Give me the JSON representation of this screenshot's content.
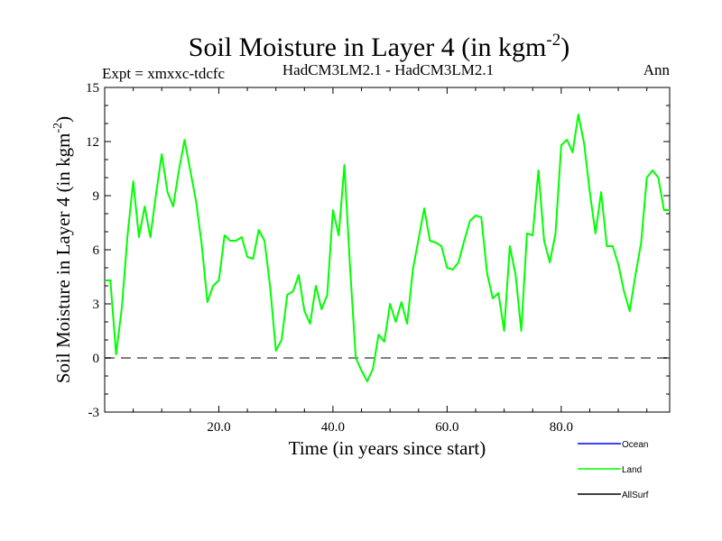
{
  "header": {
    "title_main": "Soil Moisture in Layer 4 (in kgm",
    "title_sup": "-2",
    "title_end": ")",
    "expt": "Expt = xmxxc-tdcfc",
    "model": "HadCM3LM2.1 - HadCM3LM2.1",
    "season": "Ann"
  },
  "axes": {
    "xlabel": "Time (in years since start)",
    "ylabel_main": "Soil Moisture in Layer 4 (in kgm",
    "ylabel_sup": "-2",
    "ylabel_end": ")"
  },
  "legend": {
    "items": [
      {
        "label": "Ocean",
        "color": "#0000ff"
      },
      {
        "label": "Land",
        "color": "#00ff00"
      },
      {
        "label": "AllSurf",
        "color": "#000000"
      }
    ]
  },
  "colors": {
    "land": "#00ff00",
    "zero_line": "#808080",
    "frame": "#000000"
  },
  "chart_data": {
    "type": "line",
    "xlim": [
      0,
      99
    ],
    "ylim": [
      -3,
      15
    ],
    "xticks": [
      20,
      40,
      60,
      80
    ],
    "xtick_labels": [
      "20.0",
      "40.0",
      "60.0",
      "80.0"
    ],
    "yticks": [
      -3,
      0,
      3,
      6,
      9,
      12,
      15
    ],
    "ytick_labels": [
      "-3",
      "0",
      "3",
      "6",
      "9",
      "12",
      "15"
    ],
    "reference_line": {
      "y": 0,
      "style": "dashed"
    },
    "series": [
      {
        "name": "Land",
        "x": [
          0,
          1,
          2,
          3,
          4,
          5,
          6,
          7,
          8,
          9,
          10,
          11,
          12,
          13,
          14,
          15,
          16,
          17,
          18,
          19,
          20,
          21,
          22,
          23,
          24,
          25,
          26,
          27,
          28,
          29,
          30,
          31,
          32,
          33,
          34,
          35,
          36,
          37,
          38,
          39,
          40,
          41,
          42,
          43,
          44,
          45,
          46,
          47,
          48,
          49,
          50,
          51,
          52,
          53,
          54,
          55,
          56,
          57,
          58,
          59,
          60,
          61,
          62,
          63,
          64,
          65,
          66,
          67,
          68,
          69,
          70,
          71,
          72,
          73,
          74,
          75,
          76,
          77,
          78,
          79,
          80,
          81,
          82,
          83,
          84,
          85,
          86,
          87,
          88,
          89,
          90,
          91,
          92,
          93,
          94,
          95,
          96,
          97,
          98,
          99
        ],
        "values": [
          4.3,
          4.3,
          0.2,
          2.8,
          6.8,
          9.8,
          6.7,
          8.4,
          6.7,
          9.1,
          11.3,
          9.2,
          8.4,
          10.4,
          12.1,
          10.4,
          8.7,
          6.3,
          3.1,
          4.0,
          4.3,
          6.8,
          6.5,
          6.5,
          6.7,
          5.6,
          5.5,
          7.1,
          6.5,
          3.9,
          0.4,
          1.0,
          3.5,
          3.7,
          4.6,
          2.6,
          1.9,
          4.0,
          2.7,
          3.5,
          8.2,
          6.8,
          10.7,
          5.0,
          0.0,
          -0.7,
          -1.3,
          -0.6,
          1.3,
          0.9,
          3.0,
          2.0,
          3.1,
          1.9,
          4.9,
          6.6,
          8.3,
          6.5,
          6.4,
          6.2,
          5.0,
          4.9,
          5.3,
          6.5,
          7.6,
          7.9,
          7.8,
          4.7,
          3.3,
          3.6,
          1.5,
          6.2,
          4.6,
          1.5,
          6.9,
          6.8,
          10.4,
          6.5,
          5.3,
          6.9,
          11.8,
          12.1,
          11.4,
          13.5,
          11.9,
          9.2,
          6.9,
          9.2,
          6.2,
          6.2,
          5.2,
          3.7,
          2.6,
          4.6,
          6.4,
          10.0,
          10.4,
          10.0,
          8.2,
          8.2
        ]
      }
    ]
  }
}
